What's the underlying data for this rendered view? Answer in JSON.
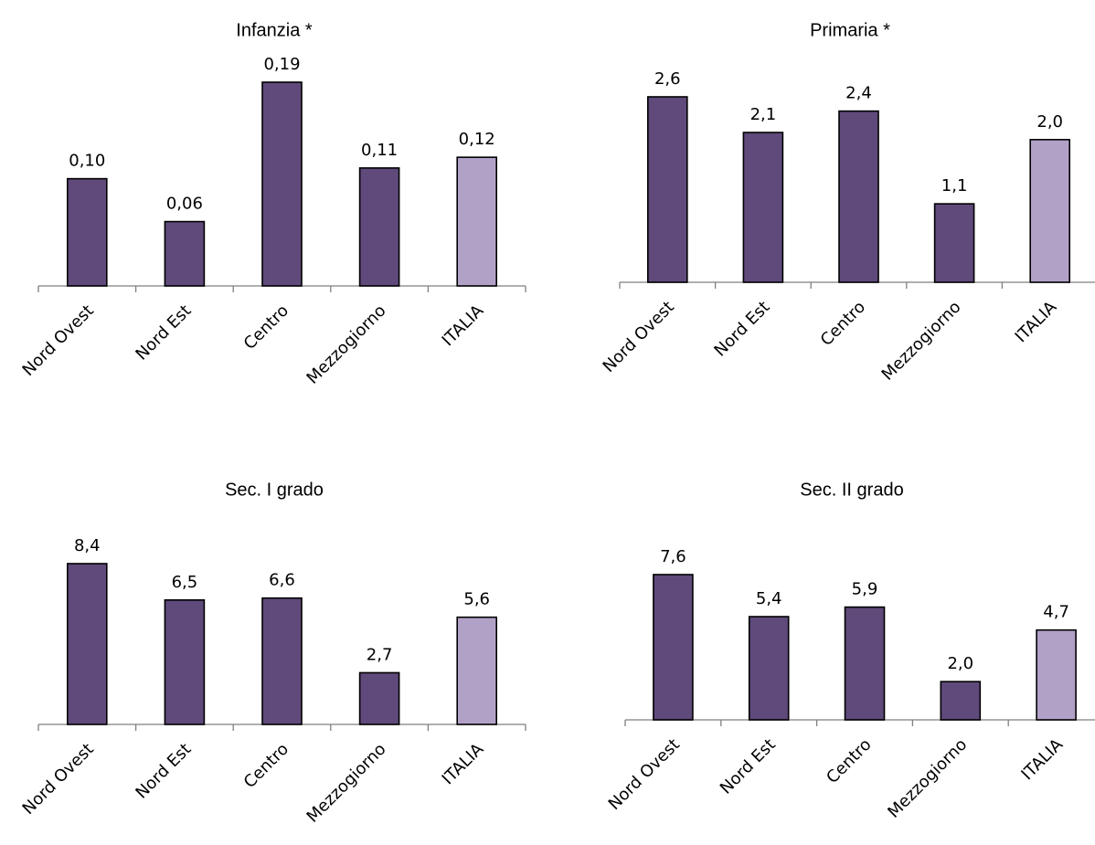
{
  "colors": {
    "regional_bar": "#5f4a7b",
    "national_bar": "#b2a1c7",
    "axis": "#7f7f7f",
    "bar_border": "#000000"
  },
  "chart_data": [
    {
      "type": "bar",
      "title": "Infanzia *",
      "categories": [
        "Nord Ovest",
        "Nord Est",
        "Centro",
        "Mezzogiorno",
        "ITALIA"
      ],
      "values": [
        0.1,
        0.06,
        0.19,
        0.11,
        0.12
      ],
      "data_labels": [
        "0,10",
        "0,06",
        "0,19",
        "0,11",
        "0,12"
      ],
      "highlight": "ITALIA",
      "xlabel": "",
      "ylabel": "",
      "grid": false,
      "legend": "none"
    },
    {
      "type": "bar",
      "title": "Primaria *",
      "categories": [
        "Nord Ovest",
        "Nord Est",
        "Centro",
        "Mezzogiorno",
        "ITALIA"
      ],
      "values": [
        2.6,
        2.1,
        2.4,
        1.1,
        2.0
      ],
      "data_labels": [
        "2,6",
        "2,1",
        "2,4",
        "1,1",
        "2,0"
      ],
      "highlight": "ITALIA",
      "xlabel": "",
      "ylabel": "",
      "grid": false,
      "legend": "none"
    },
    {
      "type": "bar",
      "title": "Sec. I grado",
      "categories": [
        "Nord Ovest",
        "Nord Est",
        "Centro",
        "Mezzogiorno",
        "ITALIA"
      ],
      "values": [
        8.4,
        6.5,
        6.6,
        2.7,
        5.6
      ],
      "data_labels": [
        "8,4",
        "6,5",
        "6,6",
        "2,7",
        "5,6"
      ],
      "highlight": "ITALIA",
      "xlabel": "",
      "ylabel": "",
      "grid": false,
      "legend": "none"
    },
    {
      "type": "bar",
      "title": "Sec. II grado",
      "categories": [
        "Nord Ovest",
        "Nord Est",
        "Centro",
        "Mezzogiorno",
        "ITALIA"
      ],
      "values": [
        7.6,
        5.4,
        5.9,
        2.0,
        4.7
      ],
      "data_labels": [
        "7,6",
        "5,4",
        "5,9",
        "2,0",
        "4,7"
      ],
      "highlight": "ITALIA",
      "xlabel": "",
      "ylabel": "",
      "grid": false,
      "legend": "none"
    }
  ]
}
